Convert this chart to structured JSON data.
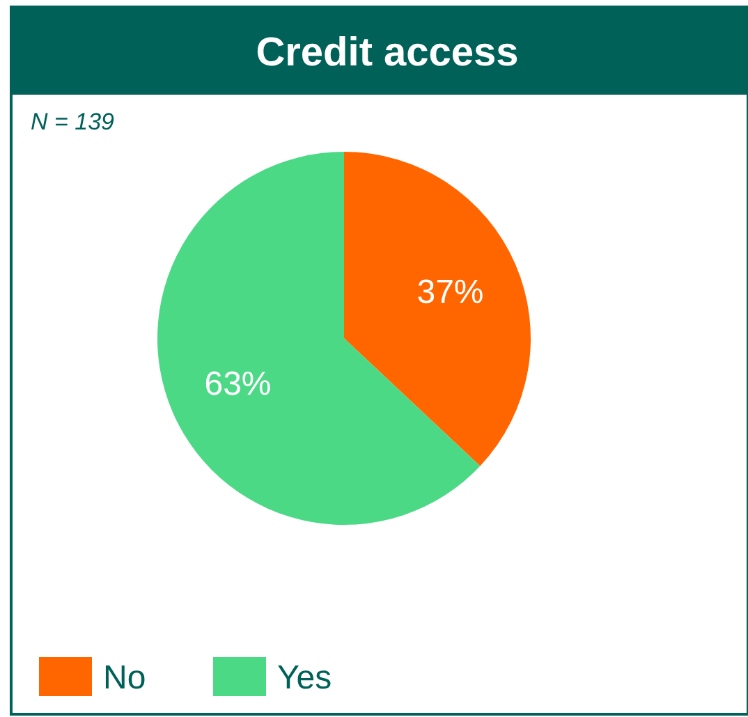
{
  "chart_data": {
    "type": "pie",
    "title": "Credit access",
    "annotations": [
      "N = 139"
    ],
    "categories": [
      "No",
      "Yes"
    ],
    "values": [
      37,
      63
    ],
    "colors": [
      "#ff6600",
      "#4cd986"
    ],
    "value_labels": [
      "37%",
      "63%"
    ],
    "legend": "bottom left"
  }
}
